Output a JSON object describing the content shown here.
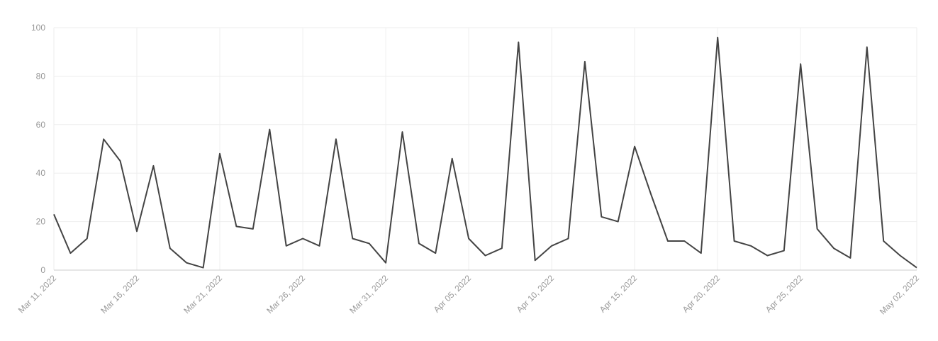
{
  "chart_data": {
    "type": "line",
    "categories": [
      "Mar 11, 2022",
      null,
      null,
      null,
      null,
      "Mar 16, 2022",
      null,
      null,
      null,
      null,
      "Mar 21, 2022",
      null,
      null,
      null,
      null,
      "Mar 26, 2022",
      null,
      null,
      null,
      null,
      "Mar 31, 2022",
      null,
      null,
      null,
      null,
      "Apr 05, 2022",
      null,
      null,
      null,
      null,
      "Apr 10, 2022",
      null,
      null,
      null,
      null,
      "Apr 15, 2022",
      null,
      null,
      null,
      null,
      "Apr 20, 2022",
      null,
      null,
      null,
      null,
      "Apr 25, 2022",
      null,
      null,
      null,
      null,
      null,
      null,
      "May 02, 2022"
    ],
    "values": [
      23,
      7,
      13,
      54,
      45,
      16,
      43,
      9,
      3,
      1,
      48,
      18,
      17,
      58,
      10,
      13,
      10,
      54,
      13,
      11,
      3,
      57,
      11,
      7,
      46,
      13,
      6,
      9,
      94,
      4,
      10,
      13,
      86,
      22,
      20,
      51,
      31,
      12,
      12,
      7,
      96,
      12,
      10,
      6,
      8,
      85,
      17,
      9,
      5,
      92,
      12,
      6,
      1
    ],
    "color": "#444444",
    "ylim": [
      0,
      100
    ],
    "yticks": [
      0,
      20,
      40,
      60,
      80,
      100
    ],
    "grid": true
  }
}
